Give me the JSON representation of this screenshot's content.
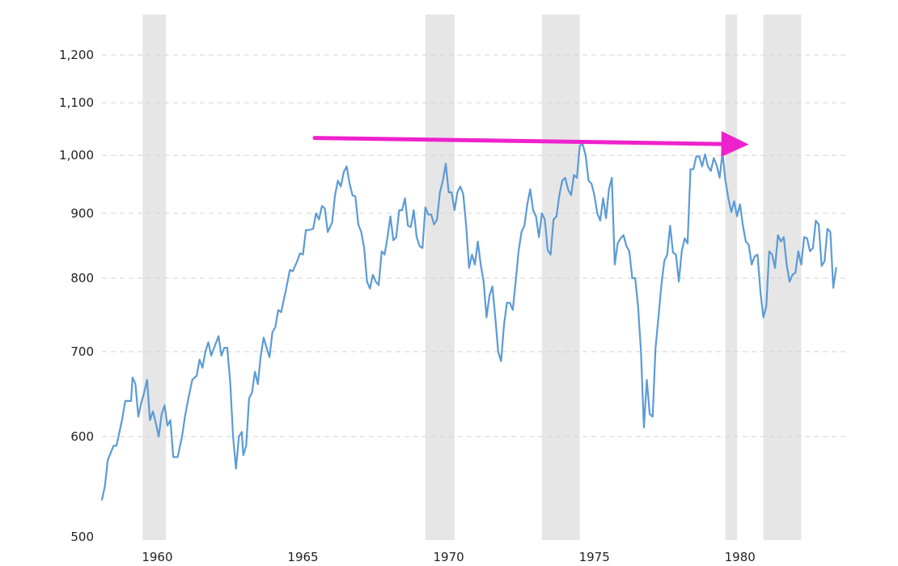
{
  "chart_data": {
    "type": "line",
    "title": "",
    "xlabel": "",
    "ylabel": "",
    "y_scale": "log",
    "ylim": [
      500,
      1280
    ],
    "xlim": [
      1958.1,
      1983.7
    ],
    "grid": true,
    "legend": "none",
    "y_ticks": [
      500,
      600,
      700,
      800,
      900,
      1000,
      1100,
      1200
    ],
    "y_tick_labels": [
      "500",
      "600",
      "700",
      "800",
      "900",
      "1,000",
      "1,100",
      "1,200"
    ],
    "x_ticks": [
      1960,
      1965,
      1970,
      1975,
      1980
    ],
    "x_tick_labels": [
      "1960",
      "1965",
      "1970",
      "1975",
      "1980"
    ],
    "recessions": [
      [
        1959.5,
        1960.3
      ],
      [
        1969.2,
        1970.2
      ],
      [
        1973.2,
        1974.5
      ],
      [
        1979.5,
        1979.9
      ],
      [
        1980.8,
        1982.1
      ]
    ],
    "arrow": {
      "from": [
        1965.4,
        1032
      ],
      "to": [
        1980.3,
        1020
      ],
      "color": "#ee22cc"
    },
    "colors": {
      "line": "#5b9bd5",
      "recession": "#e6e6e6",
      "grid": "#d3d3d3",
      "arrow": "#ee22cc"
    },
    "series": [
      {
        "color": "#5b9bd5",
        "points": [
          [
            1958.1,
            535
          ],
          [
            1958.2,
            548
          ],
          [
            1958.3,
            575
          ],
          [
            1958.5,
            590
          ],
          [
            1958.6,
            590
          ],
          [
            1958.8,
            620
          ],
          [
            1958.9,
            640
          ],
          [
            1959.1,
            640
          ],
          [
            1959.15,
            668
          ],
          [
            1959.25,
            660
          ],
          [
            1959.35,
            622
          ],
          [
            1959.45,
            638
          ],
          [
            1959.55,
            650
          ],
          [
            1959.65,
            665
          ],
          [
            1959.75,
            618
          ],
          [
            1959.85,
            628
          ],
          [
            1959.95,
            615
          ],
          [
            1960.05,
            600
          ],
          [
            1960.15,
            625
          ],
          [
            1960.25,
            635
          ],
          [
            1960.35,
            612
          ],
          [
            1960.45,
            618
          ],
          [
            1960.55,
            578
          ],
          [
            1960.7,
            578
          ],
          [
            1960.85,
            600
          ],
          [
            1960.95,
            622
          ],
          [
            1961.05,
            640
          ],
          [
            1961.2,
            665
          ],
          [
            1961.35,
            670
          ],
          [
            1961.45,
            690
          ],
          [
            1961.55,
            680
          ],
          [
            1961.65,
            700
          ],
          [
            1961.75,
            712
          ],
          [
            1961.85,
            695
          ],
          [
            1962.0,
            710
          ],
          [
            1962.1,
            720
          ],
          [
            1962.2,
            695
          ],
          [
            1962.3,
            705
          ],
          [
            1962.4,
            705
          ],
          [
            1962.5,
            663
          ],
          [
            1962.6,
            600
          ],
          [
            1962.7,
            566
          ],
          [
            1962.8,
            600
          ],
          [
            1962.9,
            605
          ],
          [
            1962.95,
            580
          ],
          [
            1963.05,
            590
          ],
          [
            1963.15,
            643
          ],
          [
            1963.25,
            650
          ],
          [
            1963.35,
            675
          ],
          [
            1963.45,
            660
          ],
          [
            1963.55,
            695
          ],
          [
            1963.65,
            718
          ],
          [
            1963.75,
            705
          ],
          [
            1963.85,
            693
          ],
          [
            1963.95,
            725
          ],
          [
            1964.05,
            732
          ],
          [
            1964.15,
            755
          ],
          [
            1964.25,
            752
          ],
          [
            1964.4,
            780
          ],
          [
            1964.55,
            812
          ],
          [
            1964.65,
            810
          ],
          [
            1964.8,
            825
          ],
          [
            1964.9,
            837
          ],
          [
            1965.0,
            835
          ],
          [
            1965.1,
            873
          ],
          [
            1965.2,
            873
          ],
          [
            1965.35,
            875
          ],
          [
            1965.45,
            900
          ],
          [
            1965.55,
            890
          ],
          [
            1965.65,
            912
          ],
          [
            1965.75,
            908
          ],
          [
            1965.85,
            870
          ],
          [
            1966.0,
            885
          ],
          [
            1966.1,
            930
          ],
          [
            1966.2,
            955
          ],
          [
            1966.3,
            945
          ],
          [
            1966.4,
            970
          ],
          [
            1966.5,
            980
          ],
          [
            1966.6,
            950
          ],
          [
            1966.7,
            930
          ],
          [
            1966.8,
            928
          ],
          [
            1966.9,
            882
          ],
          [
            1967.0,
            870
          ],
          [
            1967.1,
            845
          ],
          [
            1967.2,
            795
          ],
          [
            1967.3,
            785
          ],
          [
            1967.4,
            805
          ],
          [
            1967.5,
            795
          ],
          [
            1967.6,
            790
          ],
          [
            1967.7,
            840
          ],
          [
            1967.8,
            835
          ],
          [
            1967.9,
            862
          ],
          [
            1968.0,
            895
          ],
          [
            1968.1,
            857
          ],
          [
            1968.2,
            862
          ],
          [
            1968.3,
            905
          ],
          [
            1968.4,
            905
          ],
          [
            1968.5,
            925
          ],
          [
            1968.6,
            880
          ],
          [
            1968.7,
            878
          ],
          [
            1968.8,
            905
          ],
          [
            1968.9,
            862
          ],
          [
            1969.0,
            848
          ],
          [
            1969.1,
            845
          ],
          [
            1969.2,
            910
          ],
          [
            1969.3,
            898
          ],
          [
            1969.4,
            898
          ],
          [
            1969.5,
            882
          ],
          [
            1969.6,
            890
          ],
          [
            1969.7,
            935
          ],
          [
            1969.8,
            955
          ],
          [
            1969.9,
            985
          ],
          [
            1970.0,
            935
          ],
          [
            1970.1,
            935
          ],
          [
            1970.2,
            905
          ],
          [
            1970.3,
            935
          ],
          [
            1970.4,
            945
          ],
          [
            1970.5,
            932
          ],
          [
            1970.6,
            880
          ],
          [
            1970.7,
            815
          ],
          [
            1970.8,
            835
          ],
          [
            1970.9,
            820
          ],
          [
            1971.0,
            855
          ],
          [
            1971.1,
            820
          ],
          [
            1971.2,
            795
          ],
          [
            1971.3,
            745
          ],
          [
            1971.4,
            775
          ],
          [
            1971.5,
            788
          ],
          [
            1971.6,
            745
          ],
          [
            1971.7,
            700
          ],
          [
            1971.8,
            688
          ],
          [
            1971.9,
            735
          ],
          [
            1972.0,
            765
          ],
          [
            1972.1,
            765
          ],
          [
            1972.2,
            755
          ],
          [
            1972.3,
            795
          ],
          [
            1972.4,
            840
          ],
          [
            1972.5,
            870
          ],
          [
            1972.6,
            880
          ],
          [
            1972.7,
            915
          ],
          [
            1972.8,
            940
          ],
          [
            1972.9,
            905
          ],
          [
            1973.0,
            895
          ],
          [
            1973.1,
            862
          ],
          [
            1973.2,
            900
          ],
          [
            1973.3,
            890
          ],
          [
            1973.4,
            842
          ],
          [
            1973.5,
            835
          ],
          [
            1973.6,
            890
          ],
          [
            1973.7,
            895
          ],
          [
            1973.8,
            930
          ],
          [
            1973.9,
            955
          ],
          [
            1974.0,
            960
          ],
          [
            1974.1,
            940
          ],
          [
            1974.2,
            930
          ],
          [
            1974.3,
            965
          ],
          [
            1974.4,
            960
          ],
          [
            1974.5,
            1018
          ],
          [
            1974.6,
            1020
          ],
          [
            1974.7,
            1000
          ],
          [
            1974.8,
            955
          ],
          [
            1974.9,
            950
          ],
          [
            1975.0,
            930
          ],
          [
            1975.1,
            900
          ],
          [
            1975.2,
            888
          ],
          [
            1975.3,
            925
          ],
          [
            1975.4,
            892
          ],
          [
            1975.5,
            940
          ],
          [
            1975.6,
            960
          ],
          [
            1975.7,
            820
          ],
          [
            1975.8,
            852
          ],
          [
            1975.9,
            860
          ],
          [
            1976.0,
            865
          ],
          [
            1976.1,
            848
          ],
          [
            1976.2,
            840
          ],
          [
            1976.3,
            800
          ],
          [
            1976.4,
            800
          ],
          [
            1976.5,
            760
          ],
          [
            1976.6,
            700
          ],
          [
            1976.7,
            610
          ],
          [
            1976.8,
            665
          ],
          [
            1976.9,
            625
          ],
          [
            1977.0,
            622
          ],
          [
            1977.1,
            705
          ],
          [
            1977.2,
            745
          ],
          [
            1977.3,
            790
          ],
          [
            1977.4,
            825
          ],
          [
            1977.5,
            835
          ],
          [
            1977.6,
            880
          ],
          [
            1977.7,
            838
          ],
          [
            1977.8,
            835
          ],
          [
            1977.9,
            795
          ],
          [
            1978.0,
            840
          ],
          [
            1978.1,
            860
          ],
          [
            1978.2,
            852
          ],
          [
            1978.3,
            975
          ],
          [
            1978.4,
            975
          ],
          [
            1978.5,
            998
          ],
          [
            1978.6,
            998
          ],
          [
            1978.7,
            980
          ],
          [
            1978.8,
            1002
          ],
          [
            1978.9,
            980
          ],
          [
            1979.0,
            972
          ],
          [
            1979.1,
            995
          ],
          [
            1979.2,
            982
          ],
          [
            1979.3,
            960
          ],
          [
            1979.4,
            1005
          ],
          [
            1979.5,
            955
          ],
          [
            1979.6,
            925
          ],
          [
            1979.7,
            902
          ],
          [
            1979.8,
            920
          ],
          [
            1979.9,
            895
          ],
          [
            1980.0,
            915
          ],
          [
            1980.1,
            880
          ],
          [
            1980.2,
            855
          ],
          [
            1980.3,
            850
          ],
          [
            1980.4,
            820
          ],
          [
            1980.5,
            832
          ],
          [
            1980.6,
            835
          ],
          [
            1980.7,
            780
          ],
          [
            1980.8,
            745
          ],
          [
            1980.9,
            760
          ],
          [
            1981.0,
            840
          ],
          [
            1981.1,
            835
          ],
          [
            1981.2,
            815
          ],
          [
            1981.3,
            865
          ],
          [
            1981.4,
            855
          ],
          [
            1981.5,
            862
          ],
          [
            1981.6,
            820
          ],
          [
            1981.7,
            795
          ],
          [
            1981.8,
            805
          ],
          [
            1981.9,
            808
          ],
          [
            1982.0,
            840
          ],
          [
            1982.1,
            820
          ],
          [
            1982.2,
            862
          ],
          [
            1982.3,
            860
          ],
          [
            1982.4,
            840
          ],
          [
            1982.5,
            845
          ],
          [
            1982.6,
            888
          ],
          [
            1982.7,
            882
          ],
          [
            1982.8,
            818
          ],
          [
            1982.9,
            825
          ],
          [
            1983.0,
            875
          ],
          [
            1983.1,
            870
          ],
          [
            1983.2,
            786
          ],
          [
            1983.3,
            815
          ]
        ]
      }
    ]
  }
}
